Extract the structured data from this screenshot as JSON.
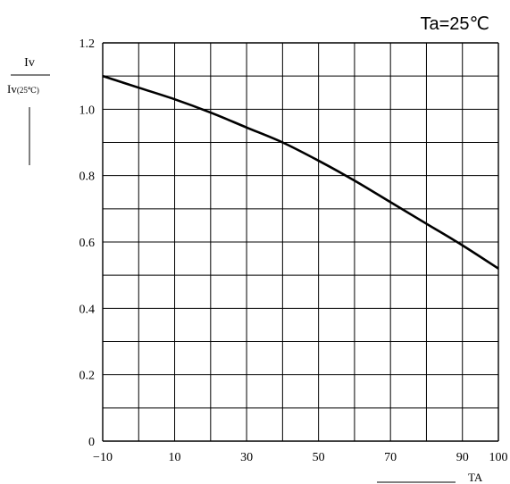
{
  "chart_data": {
    "type": "line",
    "title": "Ta=25℃",
    "ylabel_numerator": "Iv",
    "ylabel_denominator_main": "Iv",
    "ylabel_denominator_sub": "(25℃)",
    "xlabel": "TA",
    "xlim": [
      -10,
      100
    ],
    "ylim": [
      0,
      1.2
    ],
    "x_ticks": [
      -10,
      10,
      30,
      50,
      70,
      90,
      100
    ],
    "y_ticks": [
      0,
      0.2,
      0.4,
      0.6,
      0.8,
      1.0,
      1.2
    ],
    "y_tick_labels": [
      "0",
      "0.2",
      "0.4",
      "0.6",
      "0.8",
      "1.0",
      "1.2"
    ],
    "x_tick_labels": [
      "−10",
      "10",
      "30",
      "50",
      "70",
      "90",
      "100"
    ],
    "grid": true,
    "series": [
      {
        "x": [
          -10,
          0,
          10,
          20,
          30,
          40,
          50,
          60,
          70,
          80,
          90,
          100
        ],
        "y": [
          1.1,
          1.065,
          1.03,
          0.99,
          0.945,
          0.9,
          0.845,
          0.785,
          0.72,
          0.655,
          0.59,
          0.52
        ]
      }
    ]
  }
}
